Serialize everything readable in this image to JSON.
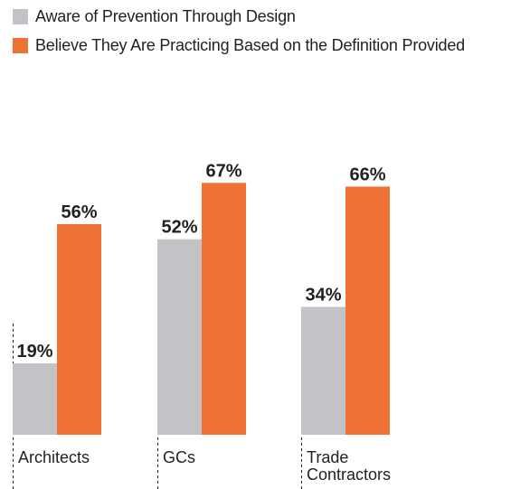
{
  "legend": {
    "items": [
      {
        "label": "Aware of Prevention Through Design",
        "color": "#c2c3c7"
      },
      {
        "label": "Believe They Are Practicing Based on the Definition Provided",
        "color": "#ef7235"
      }
    ]
  },
  "chart_data": {
    "type": "bar",
    "categories": [
      "Architects",
      "GCs",
      "Trade Contractors"
    ],
    "category_label_lines": [
      [
        "Architects"
      ],
      [
        "GCs"
      ],
      [
        "Trade",
        "Contractors"
      ]
    ],
    "series": [
      {
        "name": "Aware of Prevention Through Design",
        "values": [
          19,
          52,
          34
        ],
        "labels": [
          "19%",
          "52%",
          "34%"
        ],
        "color": "#c2c3c7"
      },
      {
        "name": "Believe They Are Practicing Based on the Definition Provided",
        "values": [
          56,
          67,
          66
        ],
        "labels": [
          "56%",
          "67%",
          "66%"
        ],
        "color": "#ef7235"
      }
    ],
    "title": "",
    "xlabel": "",
    "ylabel": "",
    "ylim": [
      0,
      100
    ],
    "grid": false,
    "legend_position": "top-left"
  }
}
